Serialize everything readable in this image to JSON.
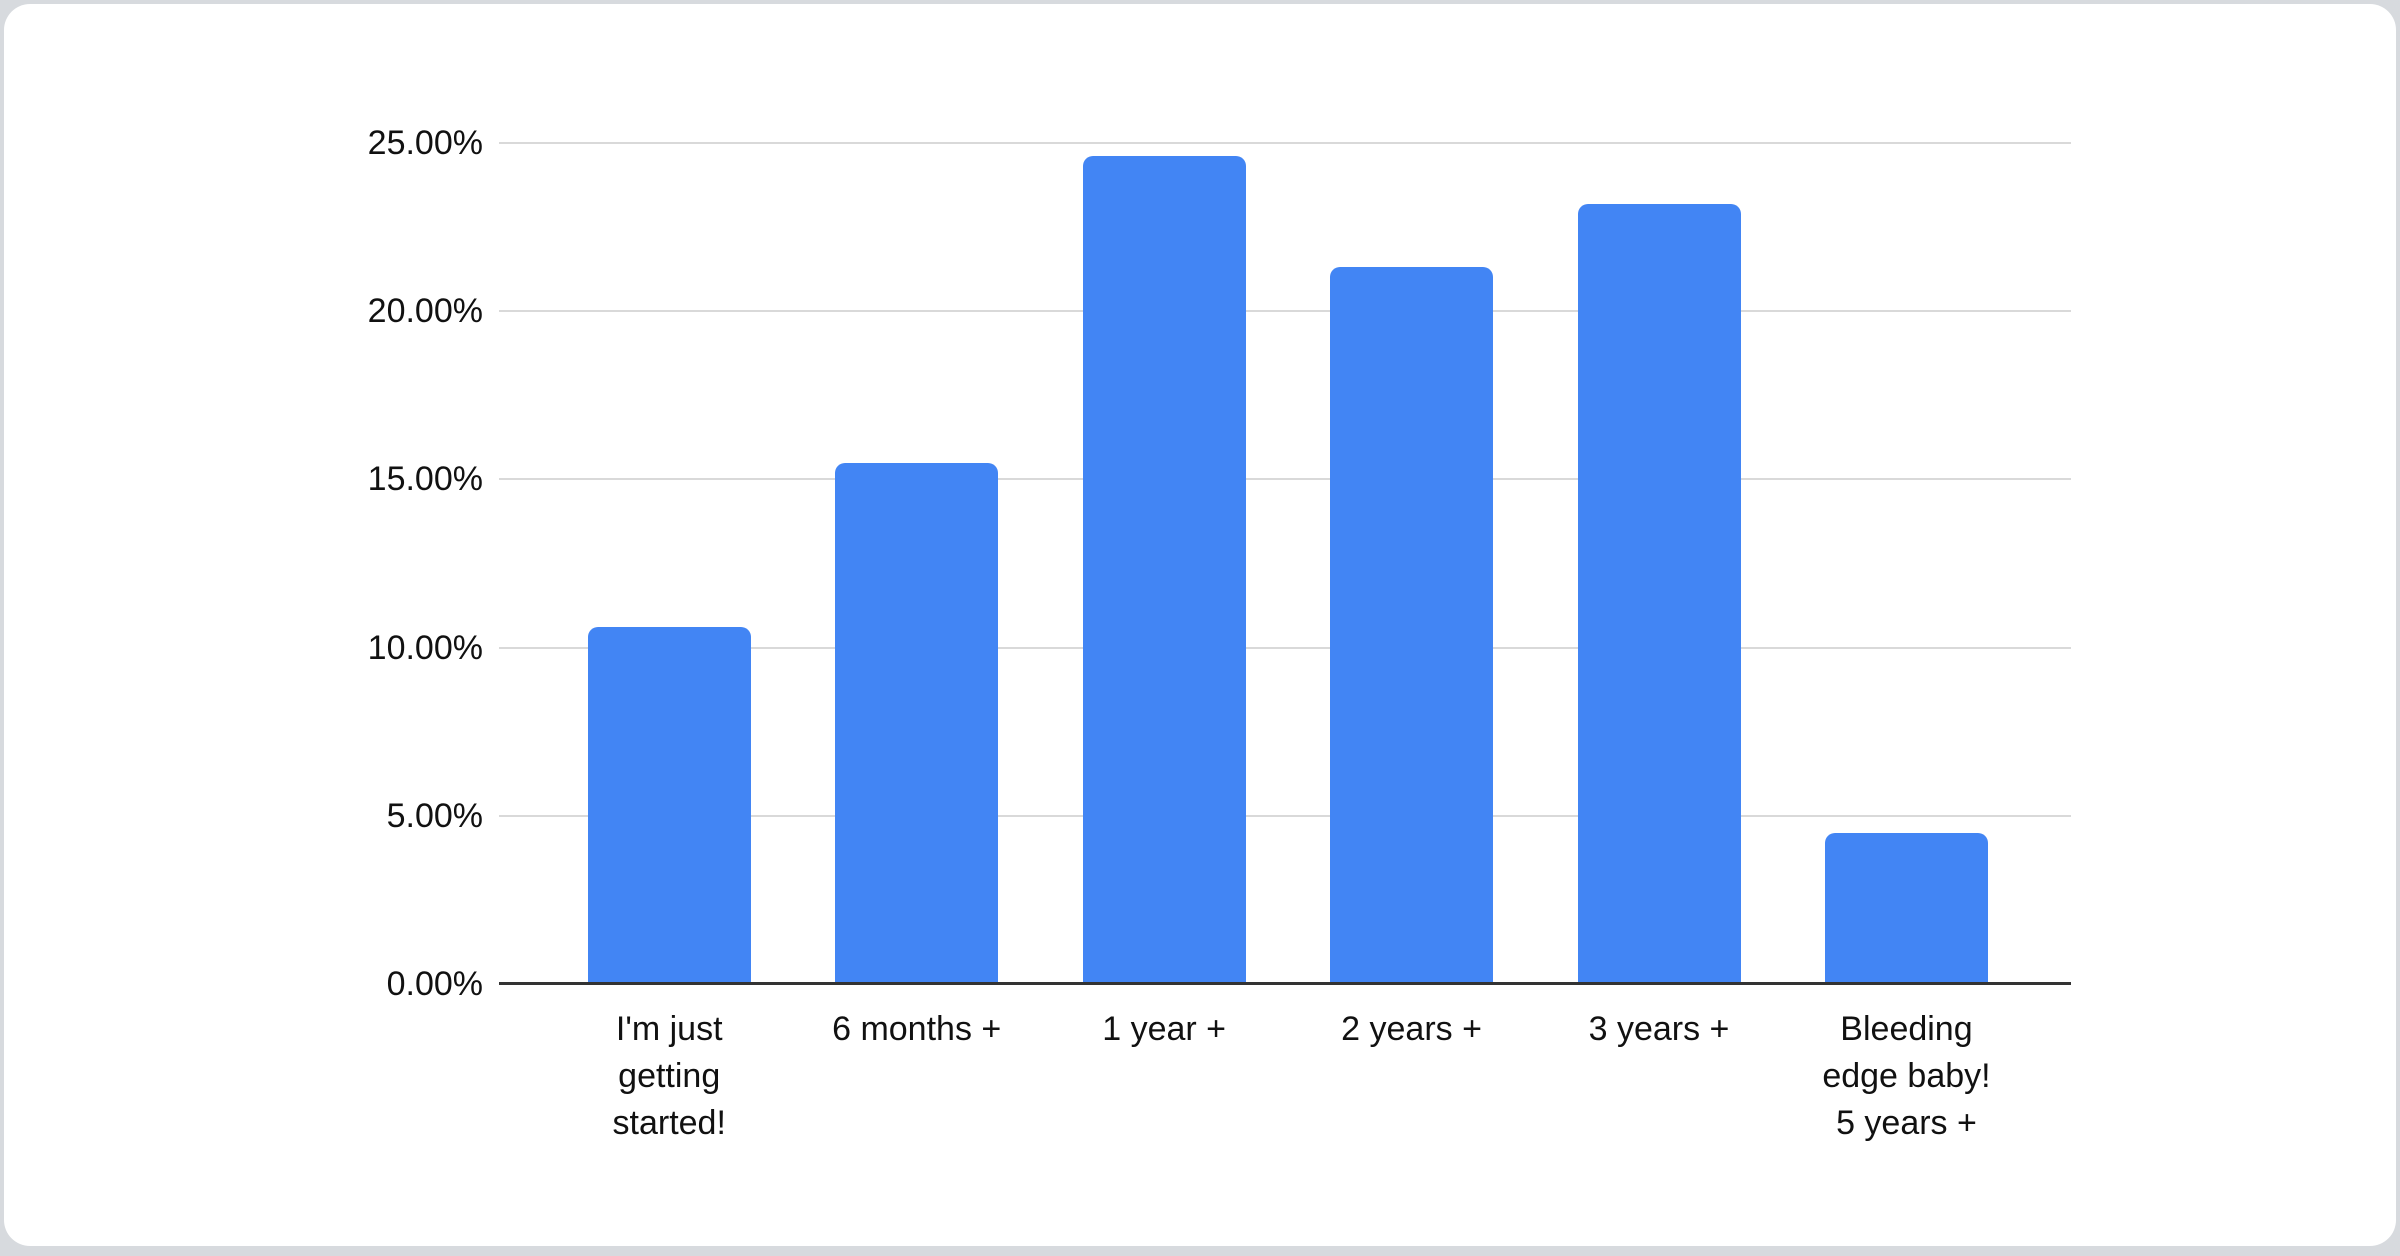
{
  "chart_data": {
    "type": "bar",
    "title": "",
    "xlabel": "",
    "ylabel": "",
    "categories": [
      "I'm just getting started!",
      "6 months +",
      "1 year +",
      "2 years +",
      "3 years +",
      "Bleeding edge baby! 5 years +"
    ],
    "category_display_lines": [
      "I'm just\ngetting\nstarted!",
      "6 months +",
      "1 year +",
      "2 years +",
      "3 years +",
      "Bleeding\nedge baby!\n5 years +"
    ],
    "values": [
      10.6,
      15.5,
      24.6,
      21.3,
      23.2,
      4.5
    ],
    "unit": "%",
    "ylim": [
      0,
      25
    ],
    "y_ticks": [
      {
        "value": 0,
        "label": "0.00%"
      },
      {
        "value": 5,
        "label": "5.00%"
      },
      {
        "value": 10,
        "label": "10.00%"
      },
      {
        "value": 15,
        "label": "15.00%"
      },
      {
        "value": 20,
        "label": "20.00%"
      },
      {
        "value": 25,
        "label": "25.00%"
      }
    ],
    "grid": true,
    "legend": "none",
    "colors": {
      "bar": "#4285f4",
      "gridline": "#d9d9d9",
      "axis_line": "#333333",
      "tick_text": "#111111",
      "card_background": "#ffffff",
      "page_background": "#d7dade"
    }
  }
}
